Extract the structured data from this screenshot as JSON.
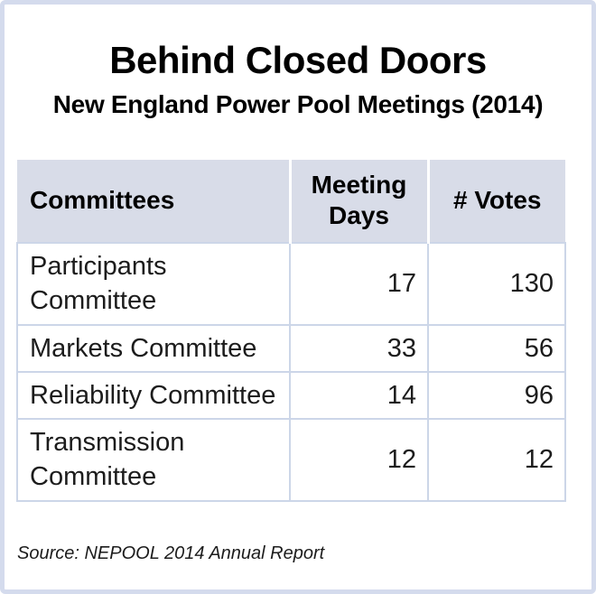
{
  "colors": {
    "frame_border": "#d4dbed",
    "header_bg": "#d8dce8",
    "cell_border": "#ccd6e8",
    "text": "#000000"
  },
  "header": {
    "title": "Behind Closed Doors",
    "subtitle": "New England Power Pool Meetings (2014)"
  },
  "footer": {
    "source": "Source: NEPOOL 2014 Annual Report"
  },
  "chart_data": {
    "type": "table",
    "title": "Behind Closed Doors",
    "subtitle": "New England Power Pool Meetings (2014)",
    "columns": [
      "Committees",
      "Meeting Days",
      "# Votes"
    ],
    "rows": [
      {
        "committee": "Participants Committee",
        "meeting_days": 17,
        "votes": 130
      },
      {
        "committee": "Markets Committee",
        "meeting_days": 33,
        "votes": 56
      },
      {
        "committee": "Reliability Committee",
        "meeting_days": 14,
        "votes": 96
      },
      {
        "committee": "Transmission Committee",
        "meeting_days": 12,
        "votes": 12
      }
    ],
    "source": "Source: NEPOOL 2014 Annual Report",
    "layout": {
      "grid": false,
      "header_separator_color": "white",
      "number_alignment": "right"
    }
  }
}
